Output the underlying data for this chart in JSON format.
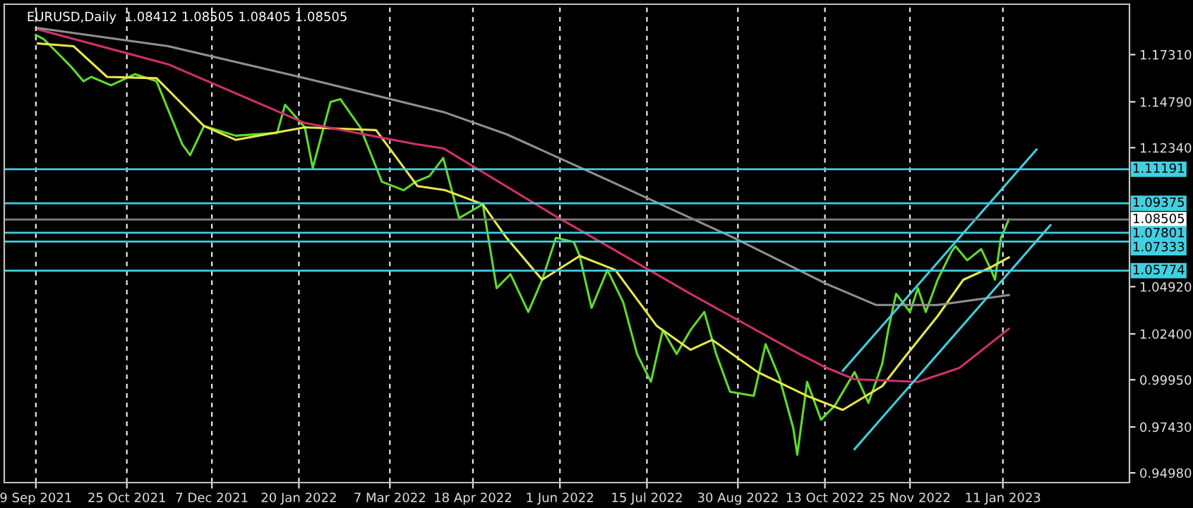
{
  "chart_data": {
    "type": "line",
    "title": "EURUSD,Daily  1.08412 1.08505 1.08405 1.08505",
    "series": [
      {
        "color": "#5fdc2c",
        "x": [
          "2021-09-09",
          "2021-09-13",
          "2021-09-20",
          "2021-09-27",
          "2021-10-03",
          "2021-10-07",
          "2021-10-17",
          "2021-10-29",
          "2021-11-09",
          "2021-11-22",
          "2021-11-26",
          "2021-12-03",
          "2021-12-19",
          "2022-01-09",
          "2022-01-13",
          "2022-01-23",
          "2022-01-27",
          "2022-02-05",
          "2022-02-10",
          "2022-02-20",
          "2022-03-03",
          "2022-03-14",
          "2022-03-20",
          "2022-03-27",
          "2022-04-03",
          "2022-04-11",
          "2022-04-23",
          "2022-04-30",
          "2022-05-07",
          "2022-05-16",
          "2022-05-23",
          "2022-05-30",
          "2022-06-08",
          "2022-06-11",
          "2022-06-17",
          "2022-06-25",
          "2022-07-03",
          "2022-07-10",
          "2022-07-17",
          "2022-07-23",
          "2022-07-30",
          "2022-08-06",
          "2022-08-13",
          "2022-08-19",
          "2022-08-26",
          "2022-09-07",
          "2022-09-13",
          "2022-09-20",
          "2022-09-27",
          "2022-09-29",
          "2022-10-04",
          "2022-10-11",
          "2022-10-18",
          "2022-10-28",
          "2022-11-04",
          "2022-11-11",
          "2022-11-14",
          "2022-11-18",
          "2022-11-25",
          "2022-11-29",
          "2022-12-03",
          "2022-12-09",
          "2022-12-16",
          "2022-12-18",
          "2022-12-24",
          "2022-12-31",
          "2023-01-05",
          "2023-01-07",
          "2023-01-10",
          "2023-01-14"
        ],
        "values": [
          1.1836,
          1.1813,
          1.1739,
          1.1664,
          1.1589,
          1.1612,
          1.1567,
          1.1627,
          1.1589,
          1.1253,
          1.1194,
          1.135,
          1.1298,
          1.1313,
          1.1463,
          1.1343,
          1.1126,
          1.1478,
          1.1493,
          1.1343,
          1.1052,
          1.1007,
          1.1052,
          1.1082,
          1.1179,
          1.0858,
          1.0932,
          1.0484,
          1.0559,
          1.0357,
          1.0529,
          1.0753,
          1.0731,
          1.0656,
          1.0379,
          1.0581,
          1.0409,
          1.0133,
          0.9984,
          1.026,
          1.0133,
          1.026,
          1.0357,
          1.0133,
          0.9931,
          0.9909,
          1.0185,
          1.0006,
          0.9737,
          0.9595,
          0.9984,
          0.9782,
          0.9857,
          1.0036,
          0.9872,
          1.0081,
          1.026,
          1.0454,
          1.0357,
          1.0484,
          1.0357,
          1.0529,
          1.0678,
          1.0708,
          1.0633,
          1.0693,
          1.0581,
          1.0529,
          1.0753,
          1.0851
        ]
      },
      {
        "color": "#e8e84a",
        "x": [
          "2021-09-10",
          "2021-09-28",
          "2021-10-15",
          "2021-11-09",
          "2021-12-03",
          "2021-12-19",
          "2022-01-23",
          "2022-02-28",
          "2022-03-21",
          "2022-04-04",
          "2022-04-23",
          "2022-05-05",
          "2022-05-23",
          "2022-06-11",
          "2022-06-29",
          "2022-07-20",
          "2022-08-06",
          "2022-08-17",
          "2022-09-09",
          "2022-10-04",
          "2022-10-22",
          "2022-11-11",
          "2022-11-22",
          "2022-12-09",
          "2022-12-22",
          "2023-01-05",
          "2023-01-14"
        ],
        "values": [
          1.1791,
          1.1776,
          1.1612,
          1.1605,
          1.135,
          1.1276,
          1.1343,
          1.1328,
          1.1029,
          1.1007,
          1.0932,
          1.0753,
          1.0529,
          1.0656,
          1.0581,
          1.0282,
          1.0155,
          1.0208,
          1.0036,
          0.9909,
          0.9834,
          0.9961,
          1.0111,
          1.0335,
          1.0529,
          1.0596,
          1.0648
        ]
      },
      {
        "color": "#d0306a",
        "x": [
          "2021-09-10",
          "2021-11-15",
          "2022-01-23",
          "2022-03-20",
          "2022-04-03",
          "2022-05-28",
          "2022-08-06",
          "2022-09-30",
          "2022-10-14",
          "2022-10-28",
          "2022-11-29",
          "2022-12-20",
          "2023-01-14"
        ],
        "values": [
          1.1866,
          1.1679,
          1.1366,
          1.1253,
          1.1231,
          1.088,
          1.0454,
          1.0133,
          1.0058,
          0.9998,
          0.9984,
          1.0058,
          1.0267
        ]
      },
      {
        "color": "#909090",
        "x": [
          "2021-09-10",
          "2021-11-15",
          "2022-01-23",
          "2022-04-03",
          "2022-05-05",
          "2022-07-02",
          "2022-08-28",
          "2022-10-14",
          "2022-11-08",
          "2022-12-09",
          "2023-01-14"
        ],
        "values": [
          1.1873,
          1.1776,
          1.1605,
          1.1425,
          1.1306,
          1.1029,
          1.0753,
          1.0506,
          1.0394,
          1.0394,
          1.0447
        ]
      },
      {
        "color": "#40d0e0",
        "x": [
          "2022-10-22",
          "2023-01-28"
        ],
        "values": [
          1.0043,
          1.1224
        ]
      },
      {
        "color": "#40d0e0",
        "x": [
          "2022-10-28",
          "2023-02-04"
        ],
        "values": [
          0.9625,
          1.082
        ]
      }
    ],
    "xlim": [
      "2021-08-24",
      "2023-03-16"
    ],
    "xticks": [
      {
        "value": "2021-09-09",
        "label": "9 Sep 2021"
      },
      {
        "value": "2021-10-25",
        "label": "25 Oct 2021"
      },
      {
        "value": "2021-12-07",
        "label": "7 Dec 2021"
      },
      {
        "value": "2022-01-20",
        "label": "20 Jan 2022"
      },
      {
        "value": "2022-03-07",
        "label": "7 Mar 2022"
      },
      {
        "value": "2022-04-18",
        "label": "18 Apr 2022"
      },
      {
        "value": "2022-06-01",
        "label": "1 Jun 2022"
      },
      {
        "value": "2022-07-15",
        "label": "15 Jul 2022"
      },
      {
        "value": "2022-08-30",
        "label": "30 Aug 2022"
      },
      {
        "value": "2022-10-13",
        "label": "13 Oct 2022"
      },
      {
        "value": "2022-11-25",
        "label": "25 Nov 2022"
      },
      {
        "value": "2023-01-11",
        "label": "11 Jan 2023"
      }
    ],
    "ylim": [
      0.9446,
      1.2
    ],
    "yticks": [
      {
        "value": 1.1731,
        "label": "1.17310"
      },
      {
        "value": 1.1479,
        "label": "1.14790"
      },
      {
        "value": 1.1234,
        "label": "1.12340"
      },
      {
        "value": 1.0492,
        "label": "1.04920"
      },
      {
        "value": 1.024,
        "label": "1.02400"
      },
      {
        "value": 0.9995,
        "label": "0.99950"
      },
      {
        "value": 0.9743,
        "label": "0.97430"
      },
      {
        "value": 0.9498,
        "label": "0.94980"
      }
    ],
    "ref_lines": [
      {
        "axis": "y",
        "value": 1.11191,
        "label": "1.11191",
        "color": "#40d0e0"
      },
      {
        "axis": "y",
        "value": 1.09375,
        "label": "1.09375",
        "color": "#40d0e0"
      },
      {
        "axis": "y",
        "value": 1.08505,
        "label": "1.08505",
        "color": "#808080"
      },
      {
        "axis": "y",
        "value": 1.07801,
        "label": "1.07801",
        "color": "#40d0e0"
      },
      {
        "axis": "y",
        "value": 1.07333,
        "label": "1.07333",
        "color": "#40d0e0"
      },
      {
        "axis": "y",
        "value": 1.05774,
        "label": "1.05774",
        "color": "#40d0e0"
      }
    ],
    "grid": "x",
    "legend": false,
    "marker": "none",
    "line_style": "solid"
  }
}
